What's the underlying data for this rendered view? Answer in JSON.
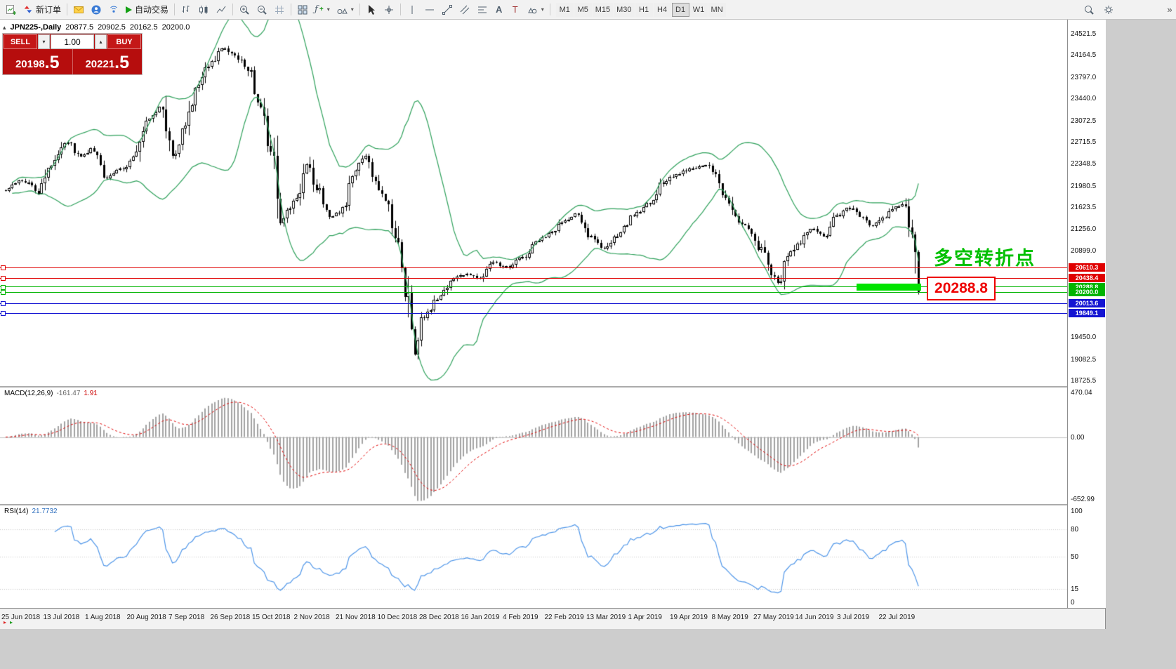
{
  "toolbar": {
    "new_order": "新订单",
    "algo_trading": "自动交易",
    "timeframes": [
      "M1",
      "M5",
      "M15",
      "M30",
      "H1",
      "H4",
      "D1",
      "W1",
      "MN"
    ],
    "active_timeframe": "D1",
    "overflow": "»"
  },
  "chart": {
    "header": {
      "symbol": "JPN225-,Daily",
      "open": "20877.5",
      "high": "20902.5",
      "low": "20162.5",
      "close": "20200.0"
    },
    "trade_panel": {
      "sell_label": "SELL",
      "buy_label": "BUY",
      "volume": "1.00",
      "sell_price": "20198",
      "sell_pips": ".5",
      "buy_price": "20221",
      "buy_pips": ".5"
    },
    "annotation_text": "多空转折点",
    "callout_price": "20288.8",
    "price_axis": {
      "top_price": 24756,
      "bottom_price": 18633,
      "labels": [
        "24521.5",
        "24164.5",
        "23797.0",
        "23440.0",
        "23072.5",
        "22715.5",
        "22348.5",
        "21980.5",
        "21623.5",
        "21256.0",
        "20899.0",
        "19450.0",
        "19082.5",
        "18725.5"
      ]
    },
    "hlines": [
      {
        "price": 20610.3,
        "label": "20610.3",
        "color": "#e00000"
      },
      {
        "price": 20438.4,
        "label": "20438.4",
        "color": "#e00000"
      },
      {
        "price": 20288.8,
        "label": "20288.8",
        "color": "#00b400"
      },
      {
        "price": 20200.0,
        "label": "20200.0",
        "color": "#00b400"
      },
      {
        "price": 20013.6,
        "label": "20013.6",
        "color": "#1414d2"
      },
      {
        "price": 19849.1,
        "label": "19849.1",
        "color": "#1414d2"
      }
    ],
    "time_axis": [
      "25 Jun 2018",
      "13 Jul 2018",
      "1 Aug 2018",
      "20 Aug 2018",
      "7 Sep 2018",
      "26 Sep 2018",
      "15 Oct 2018",
      "2 Nov 2018",
      "21 Nov 2018",
      "10 Dec 2018",
      "28 Dec 2018",
      "16 Jan 2019",
      "4 Feb 2019",
      "22 Feb 2019",
      "13 Mar 2019",
      "1 Apr 2019",
      "19 Apr 2019",
      "8 May 2019",
      "27 May 2019",
      "14 Jun 2019",
      "3 Jul 2019",
      "22 Jul 2019"
    ]
  },
  "indicators": {
    "macd": {
      "name": "MACD(12,26,9)",
      "value": "-161.47",
      "signal_value": "1.91",
      "axis": [
        "470.04",
        "0.00",
        "-652.99"
      ],
      "max": 470.04,
      "min": -652.99
    },
    "rsi": {
      "name": "RSI(14)",
      "value": "21.7732",
      "axis": [
        "100",
        "80",
        "50",
        "15",
        "0"
      ],
      "levels": [
        80,
        50,
        15
      ]
    }
  },
  "colors": {
    "bull": "#ffffff",
    "bear": "#000000",
    "wick": "#000000",
    "bands": "#2da05a",
    "macd_hist": "#a2a2a2",
    "macd_signal": "#e00000",
    "rsi_line": "#4c94e8",
    "highlight": "#00e400",
    "annotation": "#00c000",
    "callout": "#ee0000",
    "panel_red": "#b60d0d"
  },
  "chart_data": {
    "type": "candlestick",
    "symbol": "JPN225",
    "period": "Daily",
    "bars": 280,
    "price_axis_range": [
      18633,
      24756
    ],
    "last_ohlc": {
      "open": 20877.5,
      "high": 20902.5,
      "low": 20162.5,
      "close": 20200.0
    },
    "overlays": [
      {
        "name": "Bollinger Bands",
        "period": 20,
        "deviation": 2
      }
    ],
    "sub_indicators": [
      {
        "name": "MACD",
        "params": [
          12,
          26,
          9
        ],
        "current": [
          -161.47,
          1.91
        ],
        "scale": [
          -652.99,
          470.04
        ]
      },
      {
        "name": "RSI",
        "params": [
          14
        ],
        "current": 21.7732,
        "scale": [
          0,
          100
        ],
        "levels": [
          80,
          50,
          15
        ]
      }
    ],
    "price_path": [
      [
        0,
        21900
      ],
      [
        0.017,
        22080
      ],
      [
        0.036,
        21880
      ],
      [
        0.048,
        22320
      ],
      [
        0.067,
        22720
      ],
      [
        0.082,
        22480
      ],
      [
        0.094,
        22600
      ],
      [
        0.111,
        22120
      ],
      [
        0.128,
        22280
      ],
      [
        0.14,
        22450
      ],
      [
        0.155,
        23020
      ],
      [
        0.169,
        23320
      ],
      [
        0.184,
        22420
      ],
      [
        0.195,
        22900
      ],
      [
        0.209,
        23580
      ],
      [
        0.224,
        24020
      ],
      [
        0.238,
        24280
      ],
      [
        0.25,
        24160
      ],
      [
        0.264,
        23980
      ],
      [
        0.277,
        23420
      ],
      [
        0.29,
        22650
      ],
      [
        0.301,
        21350
      ],
      [
        0.31,
        21600
      ],
      [
        0.32,
        21850
      ],
      [
        0.329,
        22350
      ],
      [
        0.341,
        21920
      ],
      [
        0.355,
        21470
      ],
      [
        0.367,
        21540
      ],
      [
        0.382,
        22180
      ],
      [
        0.393,
        22460
      ],
      [
        0.405,
        22020
      ],
      [
        0.416,
        21680
      ],
      [
        0.428,
        21020
      ],
      [
        0.438,
        20280
      ],
      [
        0.447,
        19180
      ],
      [
        0.455,
        19720
      ],
      [
        0.464,
        19920
      ],
      [
        0.474,
        20120
      ],
      [
        0.489,
        20420
      ],
      [
        0.505,
        20520
      ],
      [
        0.52,
        20420
      ],
      [
        0.535,
        20680
      ],
      [
        0.55,
        20620
      ],
      [
        0.566,
        20780
      ],
      [
        0.581,
        21020
      ],
      [
        0.597,
        21180
      ],
      [
        0.612,
        21420
      ],
      [
        0.625,
        21520
      ],
      [
        0.641,
        21120
      ],
      [
        0.656,
        20920
      ],
      [
        0.67,
        21160
      ],
      [
        0.687,
        21470
      ],
      [
        0.704,
        21680
      ],
      [
        0.72,
        22020
      ],
      [
        0.735,
        22160
      ],
      [
        0.75,
        22260
      ],
      [
        0.766,
        22320
      ],
      [
        0.777,
        22220
      ],
      [
        0.789,
        21760
      ],
      [
        0.802,
        21380
      ],
      [
        0.816,
        21220
      ],
      [
        0.827,
        20920
      ],
      [
        0.839,
        20470
      ],
      [
        0.848,
        20360
      ],
      [
        0.858,
        20820
      ],
      [
        0.869,
        21020
      ],
      [
        0.883,
        21260
      ],
      [
        0.896,
        21120
      ],
      [
        0.909,
        21470
      ],
      [
        0.923,
        21620
      ],
      [
        0.937,
        21470
      ],
      [
        0.95,
        21320
      ],
      [
        0.963,
        21470
      ],
      [
        0.977,
        21660
      ],
      [
        0.986,
        21720
      ],
      [
        0.992,
        21150
      ],
      [
        0.997,
        20680
      ],
      [
        1,
        20200
      ]
    ]
  }
}
